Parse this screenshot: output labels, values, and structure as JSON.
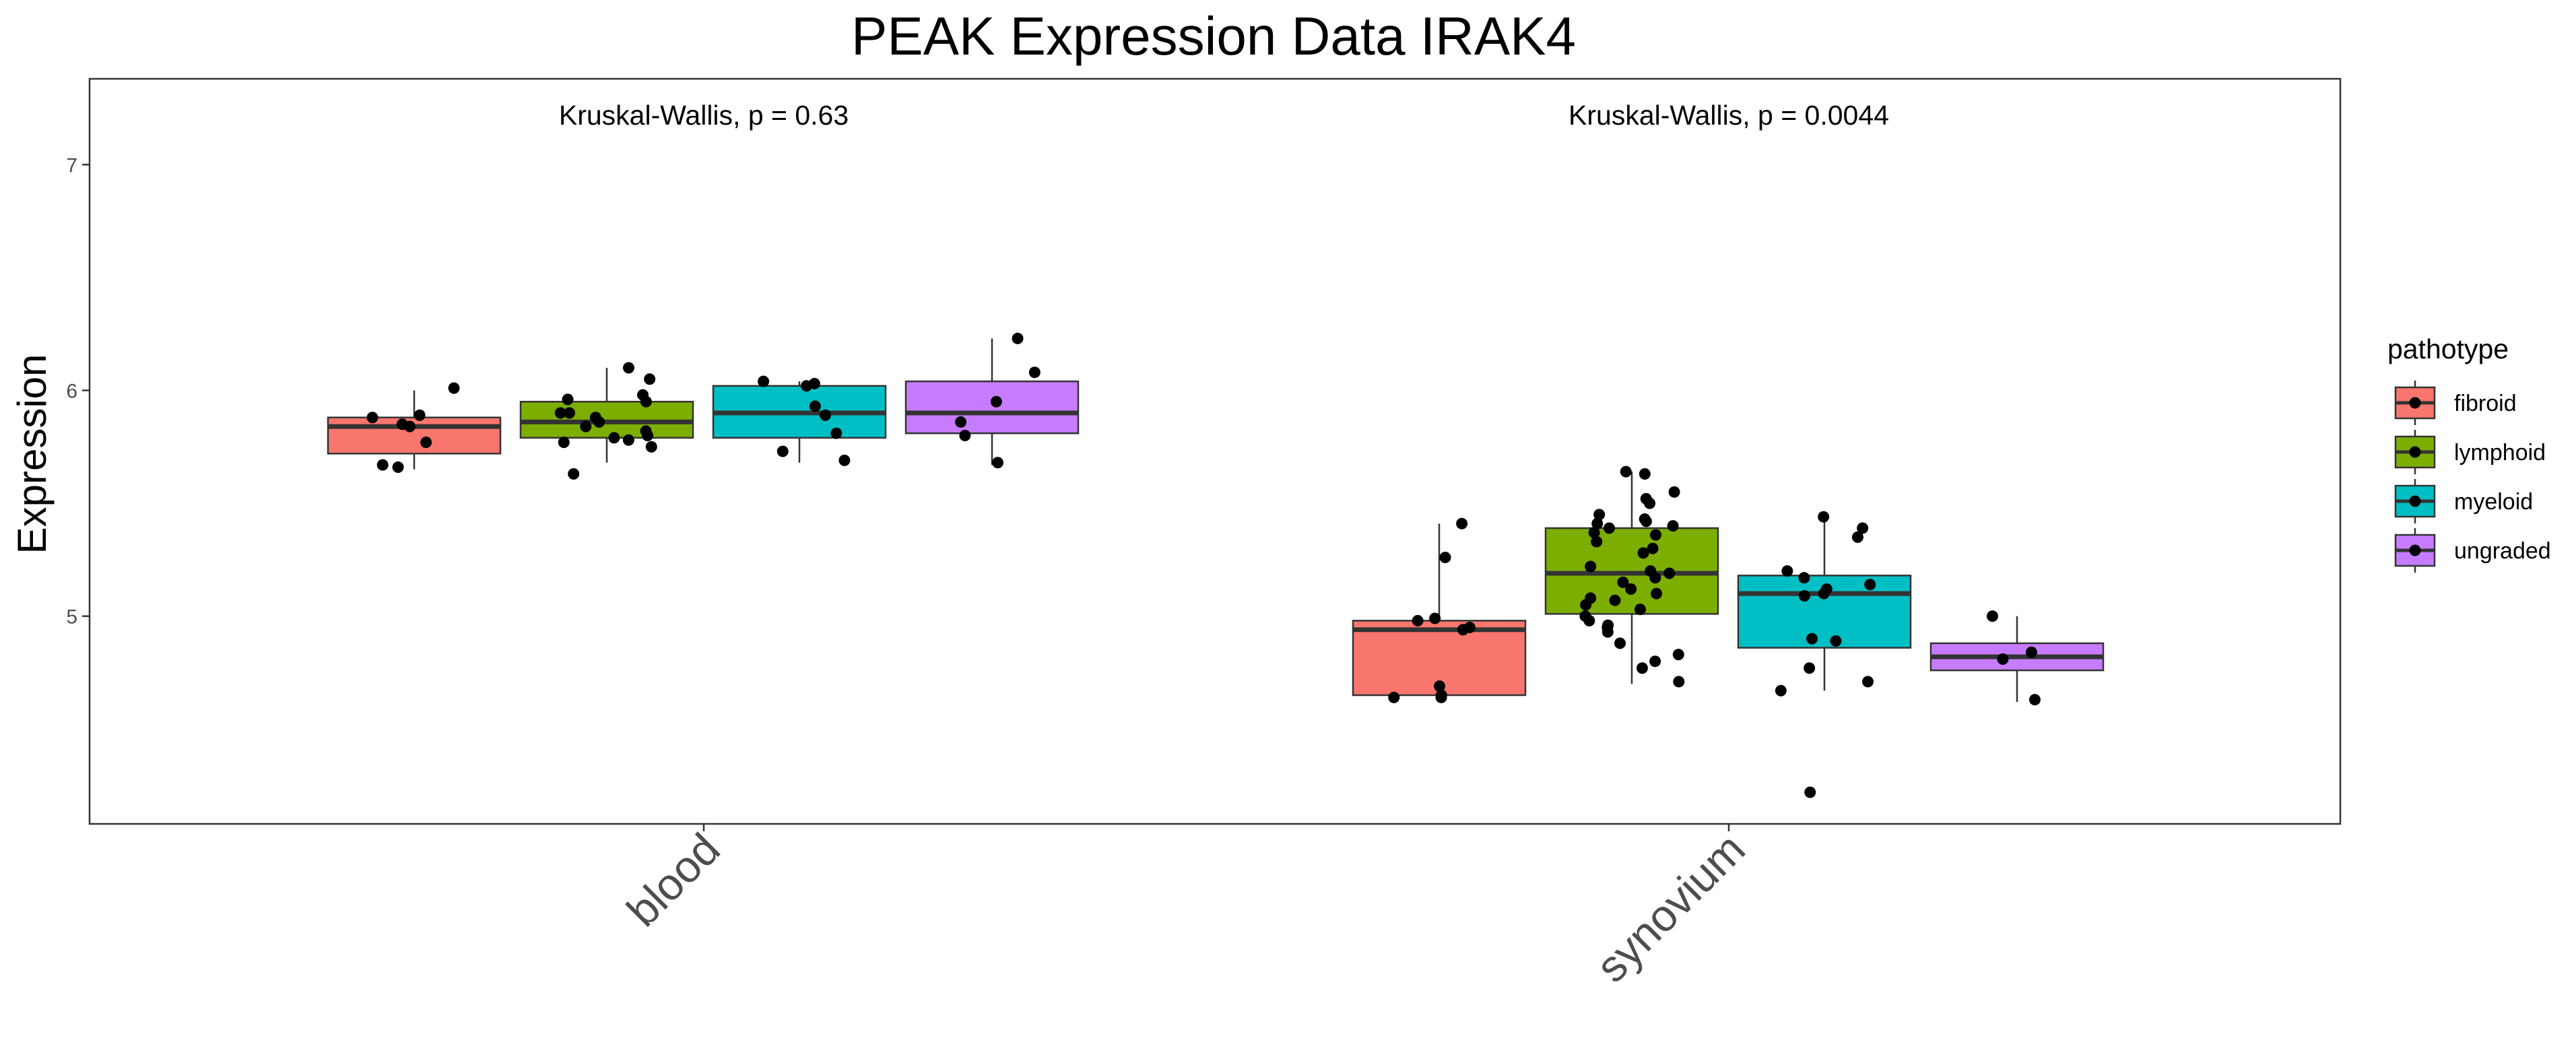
{
  "chart_data": {
    "type": "box",
    "title": "PEAK Expression Data IRAK4",
    "ylabel": "Expression",
    "xlabel": "",
    "ylim": [
      4.08,
      7.38
    ],
    "yticks": [
      5,
      6,
      7
    ],
    "grid": false,
    "legend_position": "right",
    "legend": {
      "title": "pathotype",
      "entries": [
        {
          "name": "fibroid",
          "color": "#F8766D"
        },
        {
          "name": "lymphoid",
          "color": "#7CAE00"
        },
        {
          "name": "myeloid",
          "color": "#00BFC4"
        },
        {
          "name": "ungraded",
          "color": "#C77CFF"
        }
      ]
    },
    "categories": [
      "blood",
      "synovium"
    ],
    "annotations": [
      {
        "category": "blood",
        "text": "Kruskal-Wallis, p = 0.63"
      },
      {
        "category": "synovium",
        "text": "Kruskal-Wallis, p = 0.0044"
      }
    ],
    "groups": [
      {
        "category": "blood",
        "series": "fibroid",
        "whisker_low": 5.65,
        "q1": 5.72,
        "median": 5.84,
        "q3": 5.88,
        "whisker_high": 6.0,
        "points": [
          6.01,
          5.88,
          5.89,
          5.85,
          5.84,
          5.77,
          5.67,
          5.66
        ]
      },
      {
        "category": "blood",
        "series": "lymphoid",
        "whisker_low": 5.68,
        "q1": 5.79,
        "median": 5.86,
        "q3": 5.95,
        "whisker_high": 6.1,
        "points": [
          6.1,
          6.05,
          5.98,
          5.96,
          5.95,
          5.9,
          5.9,
          5.88,
          5.86,
          5.84,
          5.82,
          5.8,
          5.79,
          5.78,
          5.77,
          5.75,
          5.63
        ]
      },
      {
        "category": "blood",
        "series": "myeloid",
        "whisker_low": 5.68,
        "q1": 5.79,
        "median": 5.9,
        "q3": 6.02,
        "whisker_high": 6.04,
        "points": [
          6.04,
          6.03,
          6.02,
          5.93,
          5.89,
          5.81,
          5.73,
          5.69
        ]
      },
      {
        "category": "blood",
        "series": "ungraded",
        "whisker_low": 5.67,
        "q1": 5.81,
        "median": 5.9,
        "q3": 6.04,
        "whisker_high": 6.23,
        "points": [
          6.23,
          6.08,
          5.95,
          5.86,
          5.8,
          5.68
        ]
      },
      {
        "category": "synovium",
        "series": "fibroid",
        "whisker_low": 4.63,
        "q1": 4.65,
        "median": 4.94,
        "q3": 4.98,
        "whisker_high": 5.41,
        "points": [
          5.41,
          5.26,
          4.99,
          4.98,
          4.95,
          4.94,
          4.69,
          4.65,
          4.64,
          4.64
        ]
      },
      {
        "category": "synovium",
        "series": "lymphoid",
        "whisker_low": 4.7,
        "q1": 5.01,
        "median": 5.19,
        "q3": 5.39,
        "whisker_high": 5.64,
        "points": [
          5.64,
          5.63,
          5.55,
          5.52,
          5.5,
          5.45,
          5.43,
          5.42,
          5.41,
          5.4,
          5.39,
          5.37,
          5.36,
          5.33,
          5.3,
          5.28,
          5.22,
          5.2,
          5.19,
          5.17,
          5.15,
          5.12,
          5.1,
          5.08,
          5.07,
          5.05,
          5.03,
          5.0,
          4.98,
          4.96,
          4.95,
          4.93,
          4.88,
          4.83,
          4.8,
          4.77,
          4.71
        ]
      },
      {
        "category": "synovium",
        "series": "myeloid",
        "whisker_low": 4.67,
        "q1": 4.86,
        "median": 5.1,
        "q3": 5.18,
        "whisker_high": 5.43,
        "points": [
          5.44,
          5.39,
          5.35,
          5.2,
          5.17,
          5.14,
          5.12,
          5.1,
          5.09,
          4.9,
          4.89,
          4.77,
          4.71,
          4.67,
          4.22
        ]
      },
      {
        "category": "synovium",
        "series": "ungraded",
        "whisker_low": 4.62,
        "q1": 4.76,
        "median": 4.82,
        "q3": 4.88,
        "whisker_high": 5.0,
        "points": [
          5.0,
          4.84,
          4.81,
          4.63
        ]
      }
    ]
  }
}
